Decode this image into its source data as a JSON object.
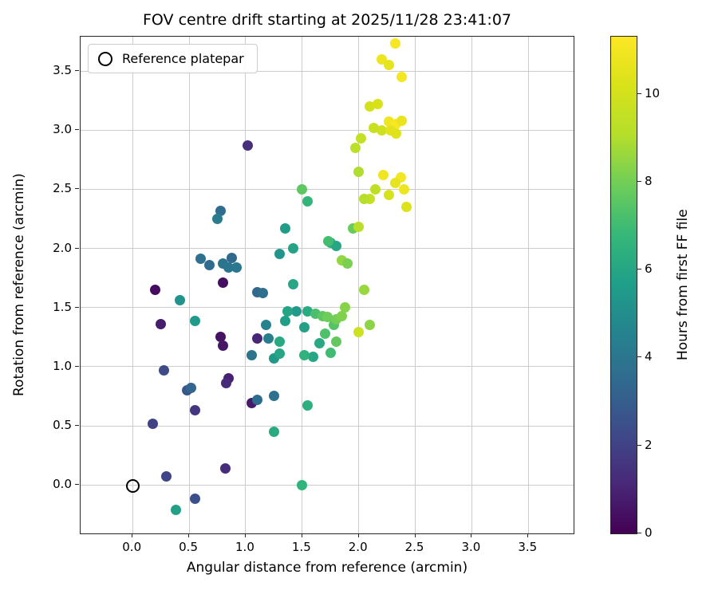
{
  "title": "FOV centre drift starting at 2025/11/28 23:41:07",
  "legend": {
    "label": "Reference platepar"
  },
  "chart_data": {
    "type": "scatter",
    "title": "FOV centre drift starting at 2025/11/28 23:41:07",
    "xlabel": "Angular distance from reference (arcmin)",
    "ylabel": "Rotation from reference (arcmin)",
    "colorbar_label": "Hours from first FF file",
    "grid": true,
    "legend_position": "upper left",
    "xlim": [
      -0.46,
      3.9
    ],
    "ylim": [
      -0.41,
      3.79
    ],
    "xticks": [
      0.0,
      0.5,
      1.0,
      1.5,
      2.0,
      2.5,
      3.0,
      3.5
    ],
    "yticks": [
      0.0,
      0.5,
      1.0,
      1.5,
      2.0,
      2.5,
      3.0,
      3.5
    ],
    "colorbar_ticks": [
      0,
      2,
      4,
      6,
      8,
      10
    ],
    "color_range": [
      0,
      11.3
    ],
    "colormap": "viridis",
    "reference_point": {
      "x": 0.0,
      "y": -0.01
    },
    "points": [
      {
        "x": 0.2,
        "y": 1.65,
        "hours": 0.3
      },
      {
        "x": 0.25,
        "y": 1.36,
        "hours": 0.8
      },
      {
        "x": 0.8,
        "y": 1.71,
        "hours": 0.4
      },
      {
        "x": 0.78,
        "y": 1.25,
        "hours": 0.5
      },
      {
        "x": 0.8,
        "y": 1.18,
        "hours": 0.6
      },
      {
        "x": 0.85,
        "y": 0.9,
        "hours": 0.9
      },
      {
        "x": 0.83,
        "y": 0.86,
        "hours": 1.2
      },
      {
        "x": 1.02,
        "y": 2.87,
        "hours": 1.4
      },
      {
        "x": 1.05,
        "y": 0.69,
        "hours": 0.7
      },
      {
        "x": 0.82,
        "y": 0.14,
        "hours": 1.3
      },
      {
        "x": 0.55,
        "y": 0.63,
        "hours": 1.6
      },
      {
        "x": 1.1,
        "y": 1.24,
        "hours": 1.1
      },
      {
        "x": 0.18,
        "y": 0.52,
        "hours": 2.0
      },
      {
        "x": 0.28,
        "y": 0.97,
        "hours": 2.3
      },
      {
        "x": 0.3,
        "y": 0.07,
        "hours": 2.1
      },
      {
        "x": 0.55,
        "y": -0.12,
        "hours": 2.5
      },
      {
        "x": 0.48,
        "y": 0.8,
        "hours": 2.7
      },
      {
        "x": 0.52,
        "y": 0.82,
        "hours": 3.3
      },
      {
        "x": 0.6,
        "y": 1.91,
        "hours": 3.8
      },
      {
        "x": 0.68,
        "y": 1.86,
        "hours": 3.5
      },
      {
        "x": 0.78,
        "y": 2.32,
        "hours": 3.6
      },
      {
        "x": 0.75,
        "y": 2.25,
        "hours": 4.2
      },
      {
        "x": 0.8,
        "y": 1.87,
        "hours": 3.9
      },
      {
        "x": 0.88,
        "y": 1.92,
        "hours": 3.4
      },
      {
        "x": 0.85,
        "y": 1.84,
        "hours": 4.0
      },
      {
        "x": 0.92,
        "y": 1.84,
        "hours": 4.1
      },
      {
        "x": 1.1,
        "y": 1.63,
        "hours": 3.4
      },
      {
        "x": 1.15,
        "y": 1.62,
        "hours": 3.7
      },
      {
        "x": 1.05,
        "y": 1.1,
        "hours": 3.9
      },
      {
        "x": 1.1,
        "y": 0.72,
        "hours": 3.6
      },
      {
        "x": 1.25,
        "y": 0.75,
        "hours": 3.8
      },
      {
        "x": 1.2,
        "y": 1.24,
        "hours": 4.4
      },
      {
        "x": 1.18,
        "y": 1.35,
        "hours": 4.5
      },
      {
        "x": 0.42,
        "y": 1.56,
        "hours": 5.2
      },
      {
        "x": 0.55,
        "y": 1.39,
        "hours": 5.5
      },
      {
        "x": 0.38,
        "y": -0.21,
        "hours": 5.8
      },
      {
        "x": 1.35,
        "y": 2.17,
        "hours": 5.6
      },
      {
        "x": 1.3,
        "y": 1.95,
        "hours": 5.3
      },
      {
        "x": 1.42,
        "y": 2.0,
        "hours": 5.9
      },
      {
        "x": 1.25,
        "y": 1.07,
        "hours": 5.4
      },
      {
        "x": 1.3,
        "y": 1.11,
        "hours": 6.0
      },
      {
        "x": 1.35,
        "y": 1.39,
        "hours": 5.7
      },
      {
        "x": 1.45,
        "y": 1.47,
        "hours": 5.5
      },
      {
        "x": 1.3,
        "y": 1.21,
        "hours": 6.1
      },
      {
        "x": 1.25,
        "y": 0.45,
        "hours": 6.2
      },
      {
        "x": 1.5,
        "y": 0.0,
        "hours": 6.6
      },
      {
        "x": 1.55,
        "y": 0.67,
        "hours": 6.4
      },
      {
        "x": 1.6,
        "y": 1.08,
        "hours": 6.0
      },
      {
        "x": 1.52,
        "y": 1.33,
        "hours": 5.8
      },
      {
        "x": 1.55,
        "y": 1.47,
        "hours": 6.2
      },
      {
        "x": 1.52,
        "y": 1.1,
        "hours": 6.5
      },
      {
        "x": 1.65,
        "y": 1.2,
        "hours": 6.1
      },
      {
        "x": 1.55,
        "y": 2.4,
        "hours": 6.7
      },
      {
        "x": 1.75,
        "y": 2.05,
        "hours": 6.3
      },
      {
        "x": 1.8,
        "y": 2.02,
        "hours": 6.0
      },
      {
        "x": 1.42,
        "y": 1.7,
        "hours": 6.0
      },
      {
        "x": 1.37,
        "y": 1.47,
        "hours": 5.9
      },
      {
        "x": 1.5,
        "y": 2.5,
        "hours": 7.6
      },
      {
        "x": 1.62,
        "y": 1.45,
        "hours": 7.2
      },
      {
        "x": 1.68,
        "y": 1.43,
        "hours": 7.6
      },
      {
        "x": 1.72,
        "y": 1.42,
        "hours": 7.9
      },
      {
        "x": 1.78,
        "y": 1.35,
        "hours": 7.4
      },
      {
        "x": 1.8,
        "y": 1.4,
        "hours": 8.0
      },
      {
        "x": 1.85,
        "y": 1.43,
        "hours": 8.2
      },
      {
        "x": 1.7,
        "y": 1.28,
        "hours": 7.3
      },
      {
        "x": 1.75,
        "y": 1.12,
        "hours": 7.0
      },
      {
        "x": 1.8,
        "y": 1.21,
        "hours": 7.7
      },
      {
        "x": 1.88,
        "y": 1.5,
        "hours": 8.3
      },
      {
        "x": 1.85,
        "y": 1.9,
        "hours": 8.5
      },
      {
        "x": 1.9,
        "y": 1.87,
        "hours": 8.1
      },
      {
        "x": 1.95,
        "y": 2.17,
        "hours": 7.8
      },
      {
        "x": 2.05,
        "y": 1.65,
        "hours": 8.6
      },
      {
        "x": 2.1,
        "y": 1.35,
        "hours": 8.4
      },
      {
        "x": 1.73,
        "y": 2.06,
        "hours": 7.1
      },
      {
        "x": 2.0,
        "y": 1.29,
        "hours": 9.8
      },
      {
        "x": 2.0,
        "y": 2.18,
        "hours": 9.2
      },
      {
        "x": 2.02,
        "y": 2.93,
        "hours": 9.5
      },
      {
        "x": 1.97,
        "y": 2.85,
        "hours": 9.3
      },
      {
        "x": 2.0,
        "y": 2.65,
        "hours": 9.0
      },
      {
        "x": 2.1,
        "y": 2.42,
        "hours": 9.6
      },
      {
        "x": 2.15,
        "y": 2.5,
        "hours": 9.4
      },
      {
        "x": 2.05,
        "y": 2.42,
        "hours": 9.1
      },
      {
        "x": 2.1,
        "y": 3.2,
        "hours": 10.0
      },
      {
        "x": 2.17,
        "y": 3.22,
        "hours": 10.2
      },
      {
        "x": 2.2,
        "y": 3.0,
        "hours": 9.9
      },
      {
        "x": 2.13,
        "y": 3.02,
        "hours": 9.7
      },
      {
        "x": 2.2,
        "y": 3.6,
        "hours": 10.8
      },
      {
        "x": 2.27,
        "y": 3.55,
        "hours": 10.6
      },
      {
        "x": 2.32,
        "y": 3.73,
        "hours": 11.1
      },
      {
        "x": 2.38,
        "y": 3.45,
        "hours": 11.0
      },
      {
        "x": 2.27,
        "y": 3.07,
        "hours": 10.9
      },
      {
        "x": 2.33,
        "y": 3.05,
        "hours": 11.2
      },
      {
        "x": 2.38,
        "y": 3.08,
        "hours": 10.7
      },
      {
        "x": 2.28,
        "y": 3.0,
        "hours": 10.5
      },
      {
        "x": 2.33,
        "y": 2.97,
        "hours": 10.4
      },
      {
        "x": 2.22,
        "y": 2.62,
        "hours": 10.9
      },
      {
        "x": 2.37,
        "y": 2.6,
        "hours": 11.0
      },
      {
        "x": 2.32,
        "y": 2.55,
        "hours": 10.6
      },
      {
        "x": 2.42,
        "y": 2.35,
        "hours": 10.3
      },
      {
        "x": 2.27,
        "y": 2.45,
        "hours": 10.1
      },
      {
        "x": 2.4,
        "y": 2.5,
        "hours": 10.8
      }
    ]
  }
}
